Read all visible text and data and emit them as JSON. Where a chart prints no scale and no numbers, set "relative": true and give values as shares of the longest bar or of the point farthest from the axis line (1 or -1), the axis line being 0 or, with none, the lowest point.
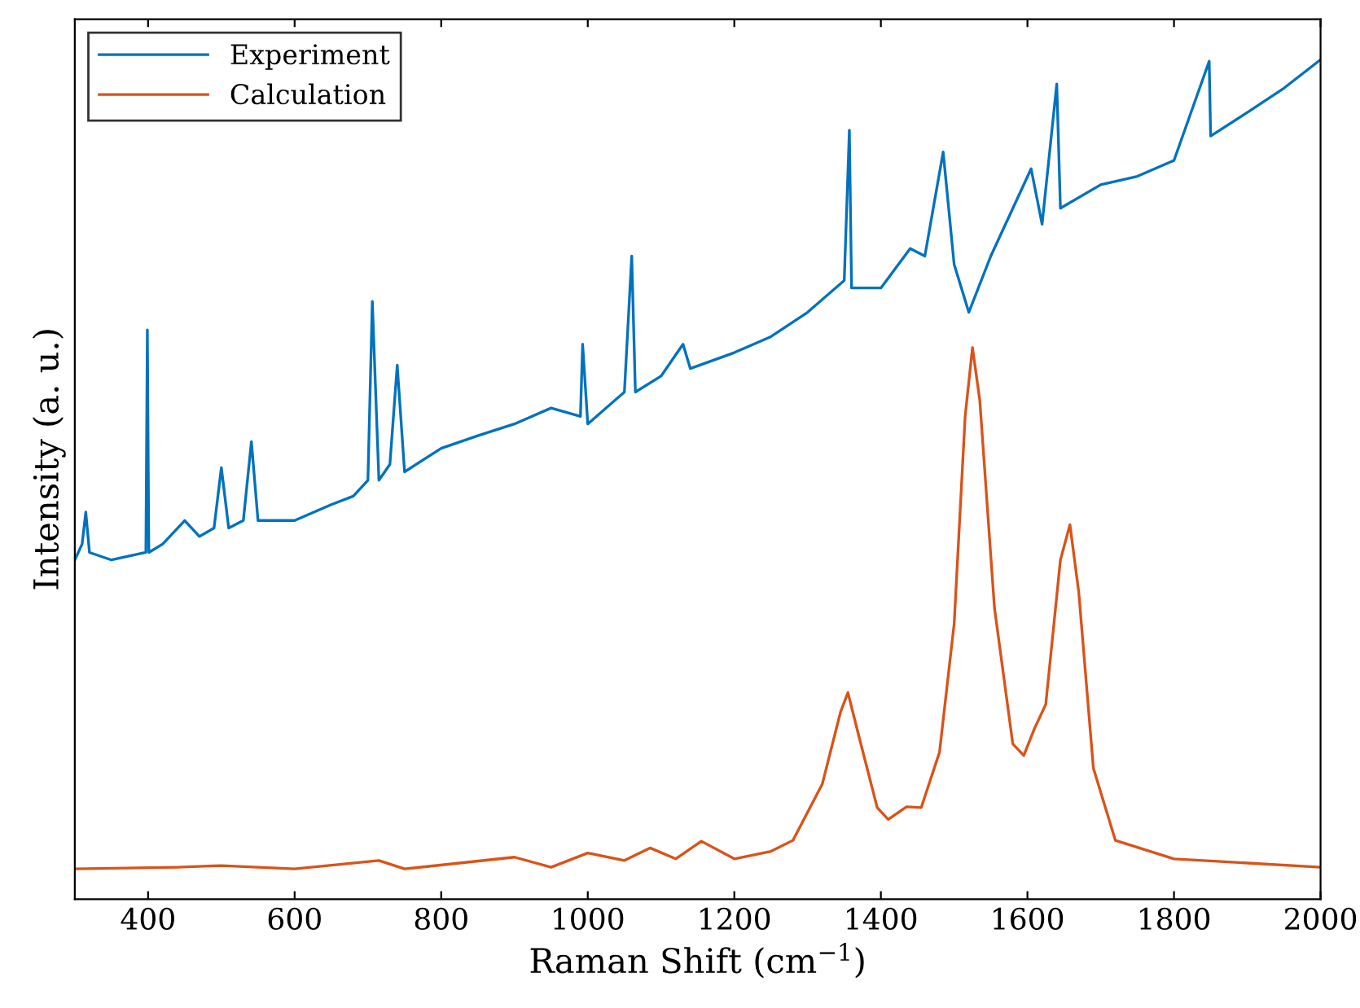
{
  "chart_data": {
    "type": "line",
    "relative": true,
    "xlabel": "Raman Shift (cm$^{−1}$)",
    "ylabel": "Intensity (a. u.)",
    "xlim": [
      300,
      2000
    ],
    "xticks": [
      400,
      600,
      800,
      1000,
      1200,
      1400,
      1600,
      1800,
      2000
    ],
    "legend": "top left",
    "grid": false,
    "marker": "none",
    "line_style": "solid",
    "series": [
      {
        "name": "Experiment",
        "color": "#0072bd",
        "x": [
          300,
          310,
          315,
          320,
          350,
          397,
          399,
          401,
          420,
          450,
          470,
          490,
          500,
          510,
          530,
          541,
          550,
          600,
          650,
          680,
          700,
          706,
          715,
          730,
          740,
          750,
          800,
          850,
          900,
          950,
          990,
          993,
          1000,
          1050,
          1060,
          1065,
          1100,
          1130,
          1140,
          1200,
          1250,
          1300,
          1350,
          1357,
          1360,
          1400,
          1440,
          1460,
          1485,
          1500,
          1520,
          1550,
          1605,
          1620,
          1640,
          1645,
          1700,
          1750,
          1800,
          1848,
          1850,
          1900,
          1950,
          2000
        ],
        "values": [
          0.404,
          0.423,
          0.461,
          0.413,
          0.404,
          0.413,
          0.678,
          0.413,
          0.423,
          0.451,
          0.432,
          0.442,
          0.514,
          0.442,
          0.451,
          0.545,
          0.451,
          0.451,
          0.47,
          0.48,
          0.499,
          0.712,
          0.499,
          0.518,
          0.636,
          0.509,
          0.537,
          0.552,
          0.566,
          0.585,
          0.575,
          0.661,
          0.566,
          0.604,
          0.766,
          0.604,
          0.623,
          0.661,
          0.632,
          0.651,
          0.67,
          0.699,
          0.737,
          0.916,
          0.728,
          0.728,
          0.775,
          0.766,
          0.89,
          0.756,
          0.699,
          0.766,
          0.87,
          0.804,
          0.971,
          0.823,
          0.851,
          0.861,
          0.88,
          0.998,
          0.909,
          0.937,
          0.966,
          1.0
        ]
      },
      {
        "name": "Calculation",
        "color": "#d95319",
        "x": [
          300,
          440,
          500,
          600,
          715,
          750,
          900,
          950,
          1000,
          1050,
          1085,
          1120,
          1155,
          1200,
          1250,
          1280,
          1320,
          1345,
          1355,
          1370,
          1395,
          1410,
          1435,
          1455,
          1480,
          1500,
          1515,
          1525,
          1535,
          1555,
          1580,
          1595,
          1610,
          1625,
          1645,
          1658,
          1670,
          1690,
          1720,
          1800,
          2000
        ],
        "values": [
          0.036,
          0.038,
          0.04,
          0.036,
          0.046,
          0.036,
          0.05,
          0.038,
          0.055,
          0.046,
          0.061,
          0.048,
          0.069,
          0.048,
          0.057,
          0.07,
          0.137,
          0.223,
          0.246,
          0.194,
          0.109,
          0.095,
          0.11,
          0.109,
          0.175,
          0.328,
          0.575,
          0.657,
          0.594,
          0.347,
          0.185,
          0.171,
          0.204,
          0.232,
          0.404,
          0.446,
          0.366,
          0.156,
          0.07,
          0.048,
          0.038
        ]
      }
    ]
  }
}
